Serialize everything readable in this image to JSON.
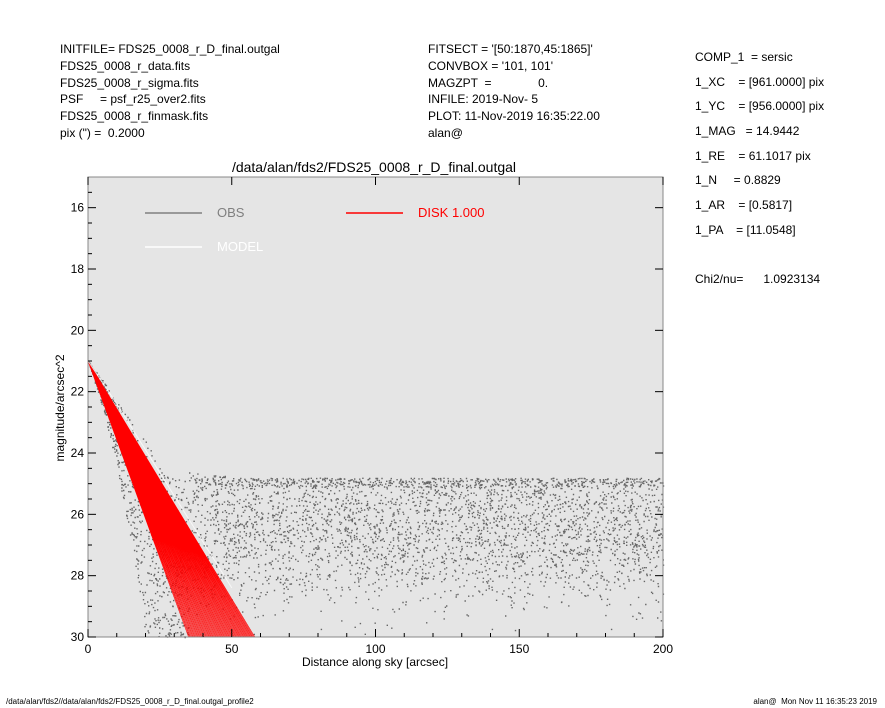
{
  "header_left": [
    "INITFILE= FDS25_0008_r_D_final.outgal",
    "FDS25_0008_r_data.fits",
    "FDS25_0008_r_sigma.fits",
    "PSF     = psf_r25_over2.fits",
    "FDS25_0008_r_finmask.fits",
    "pix (\") =  0.2000"
  ],
  "header_mid": [
    "FITSECT = '[50:1870,45:1865]'",
    "CONVBOX = '101, 101'",
    "MAGZPT  =              0.",
    "INFILE: 2019-Nov- 5",
    "PLOT: 11-Nov-2019 16:35:22.00",
    "alan@"
  ],
  "header_right": [
    "COMP_1  = sersic",
    "1_XC    = [961.0000] pix",
    "1_YC    = [956.0000] pix",
    "1_MAG   = 14.9442",
    "1_RE    = 61.1017 pix",
    "1_N     = 0.8829",
    "1_AR    = [0.5817]",
    "1_PA    = [11.0548]",
    "",
    "Chi2/nu=      1.0923134"
  ],
  "footer": {
    "left": "/data/alan/fds2//data/alan/fds2/FDS25_0008_r_D_final.outgal_profile2",
    "right": "alan@  Mon Nov 11 16:35:23 2019"
  },
  "chart_data": {
    "type": "scatter",
    "title": "/data/alan/fds2/FDS25_0008_r_D_final.outgal",
    "xlabel": "Distance along sky [arcsec]",
    "ylabel": "magnitude/arcsec^2",
    "xlim": [
      0,
      200
    ],
    "ylim": [
      30,
      15
    ],
    "y_inverted": true,
    "xticks": [
      0,
      50,
      100,
      150,
      200
    ],
    "yticks": [
      16,
      18,
      20,
      22,
      24,
      26,
      28,
      30
    ],
    "background": "#e5e5e5",
    "grid": false,
    "legend": [
      {
        "name": "OBS",
        "color": "#808080"
      },
      {
        "name": "MODEL",
        "color": "#ffffff"
      },
      {
        "name": "DISK  1.000",
        "color": "#ff0000"
      }
    ],
    "series": [
      {
        "name": "OBS",
        "color": "#666666",
        "description_points": {
          "x": [
            0,
            5,
            10,
            15,
            20,
            25,
            30,
            40,
            60,
            100,
            150,
            200
          ],
          "y_upper": [
            21.0,
            21.6,
            22.3,
            23.0,
            23.6,
            24.4,
            24.8,
            25.0,
            25.1,
            25.1,
            25.1,
            25.1
          ],
          "y_lower": [
            21.0,
            22.5,
            24.5,
            27.0,
            30.0,
            30.0,
            30.0,
            30.0,
            30.0,
            30.0,
            30.0,
            30.0
          ]
        }
      },
      {
        "name": "MODEL",
        "color": "#ffffff",
        "x": [
          0,
          10,
          20,
          30,
          40,
          50
        ],
        "y": [
          21.0,
          22.4,
          23.9,
          25.4,
          26.9,
          28.4
        ]
      },
      {
        "name": "DISK  1.000",
        "color": "#ff0000",
        "x_start": 0,
        "y_start": 21.0,
        "x_end_range": [
          35,
          58
        ],
        "y_end": 30.0
      }
    ]
  }
}
